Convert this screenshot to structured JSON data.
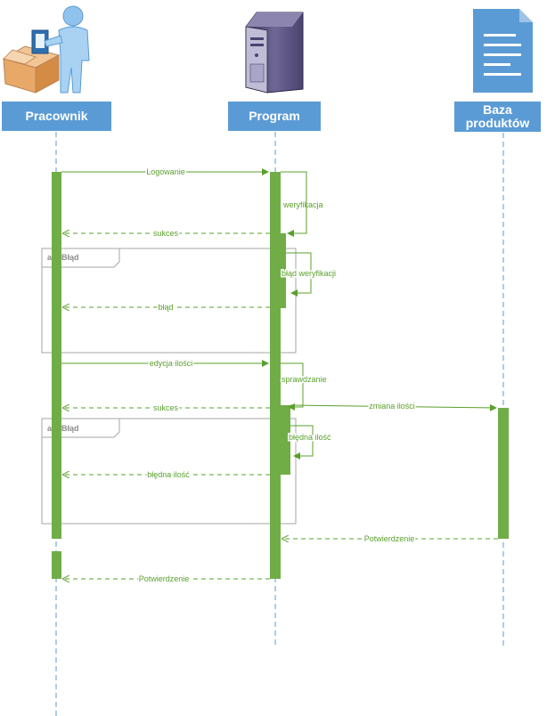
{
  "participants": [
    {
      "id": "pracownik",
      "label": "Pracownik"
    },
    {
      "id": "program",
      "label": "Program"
    },
    {
      "id": "baza",
      "label": "Baza produktów"
    }
  ],
  "icons": {
    "pracownik": "worker-with-box-icon",
    "program": "server-tower-icon",
    "baza": "document-icon"
  },
  "colors": {
    "header": "#5b9bd5",
    "activation": "#70ad47",
    "message": "#5aa02c",
    "lifeline": "#5b9bd5",
    "frame": "#a6a6a6"
  },
  "messages": [
    {
      "id": "logowanie",
      "label": "Logowanie",
      "from": "pracownik",
      "to": "program",
      "kind": "sync"
    },
    {
      "id": "weryfikacja",
      "label": "weryfikacja",
      "from": "program",
      "to": "program",
      "kind": "self"
    },
    {
      "id": "sukces-1",
      "label": "sukces",
      "from": "program",
      "to": "pracownik",
      "kind": "return"
    },
    {
      "id": "blad-weryfikacji",
      "label": "błąd weryfikacji",
      "from": "program",
      "to": "program",
      "kind": "self"
    },
    {
      "id": "blad",
      "label": "błąd",
      "from": "program",
      "to": "pracownik",
      "kind": "return"
    },
    {
      "id": "edycja-ilosci",
      "label": "edycja ilości",
      "from": "pracownik",
      "to": "program",
      "kind": "sync"
    },
    {
      "id": "sprawdzanie",
      "label": "sprawdzanie",
      "from": "program",
      "to": "program",
      "kind": "self"
    },
    {
      "id": "sukces-2",
      "label": "sukces",
      "from": "program",
      "to": "pracownik",
      "kind": "return"
    },
    {
      "id": "zmiana-ilosci",
      "label": "zmiana ilości",
      "from": "program",
      "to": "baza",
      "kind": "sync"
    },
    {
      "id": "bledna-ilosc-self",
      "label": "błędna ilość",
      "from": "program",
      "to": "program",
      "kind": "self"
    },
    {
      "id": "bledna-ilosc",
      "label": "błędna ilość",
      "from": "program",
      "to": "pracownik",
      "kind": "return"
    },
    {
      "id": "potwierdzenie-1",
      "label": "Potwierdzenie",
      "from": "baza",
      "to": "program",
      "kind": "return"
    },
    {
      "id": "potwierdzenie-2",
      "label": "Potwierdzenie",
      "from": "program",
      "to": "pracownik",
      "kind": "return"
    }
  ],
  "fragments": [
    {
      "id": "alt-1",
      "label": "alt: Błąd"
    },
    {
      "id": "alt-2",
      "label": "alt: Błąd"
    }
  ]
}
